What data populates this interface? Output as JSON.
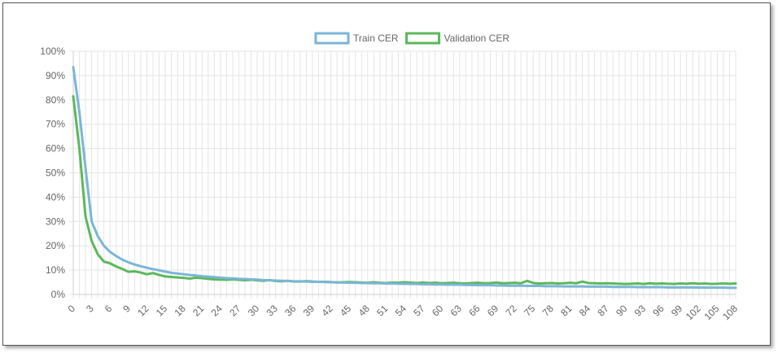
{
  "chart_data": {
    "type": "line",
    "title": "",
    "xlabel": "",
    "ylabel": "",
    "ylim": [
      0,
      100
    ],
    "y_ticks": [
      "0%",
      "10%",
      "20%",
      "30%",
      "40%",
      "50%",
      "60%",
      "70%",
      "80%",
      "90%",
      "100%"
    ],
    "x_ticks": [
      "0",
      "3",
      "6",
      "9",
      "12",
      "15",
      "18",
      "21",
      "24",
      "27",
      "30",
      "33",
      "36",
      "39",
      "42",
      "45",
      "48",
      "51",
      "54",
      "57",
      "60",
      "63",
      "66",
      "69",
      "72",
      "75",
      "78",
      "81",
      "84",
      "87",
      "90",
      "93",
      "96",
      "99",
      "102",
      "105",
      "108"
    ],
    "grid": true,
    "legend_position": "top-center",
    "x": [
      0,
      1,
      2,
      3,
      4,
      5,
      6,
      7,
      8,
      9,
      10,
      11,
      12,
      13,
      14,
      15,
      16,
      17,
      18,
      19,
      20,
      21,
      22,
      23,
      24,
      25,
      26,
      27,
      28,
      29,
      30,
      31,
      32,
      33,
      34,
      35,
      36,
      37,
      38,
      39,
      40,
      41,
      42,
      43,
      44,
      45,
      46,
      47,
      48,
      49,
      50,
      51,
      52,
      53,
      54,
      55,
      56,
      57,
      58,
      59,
      60,
      61,
      62,
      63,
      64,
      65,
      66,
      67,
      68,
      69,
      70,
      71,
      72,
      73,
      74,
      75,
      76,
      77,
      78,
      79,
      80,
      81,
      82,
      83,
      84,
      85,
      86,
      87,
      88,
      89,
      90,
      91,
      92,
      93,
      94,
      95,
      96,
      97,
      98,
      99,
      100,
      101,
      102,
      103,
      104,
      105,
      106,
      107,
      108
    ],
    "series": [
      {
        "name": "Train CER",
        "color": "#7ab6d6",
        "values": [
          93.5,
          75,
          52,
          30,
          24,
          20,
          17.5,
          15.8,
          14.3,
          13.2,
          12.3,
          11.6,
          11,
          10.4,
          9.9,
          9.4,
          8.9,
          8.6,
          8.3,
          8,
          7.8,
          7.5,
          7.3,
          7.1,
          6.9,
          6.7,
          6.6,
          6.4,
          6.3,
          6.2,
          6.1,
          5.9,
          5.8,
          5.7,
          5.6,
          5.5,
          5.4,
          5.4,
          5.3,
          5.2,
          5.2,
          5.1,
          5,
          5,
          4.9,
          4.8,
          4.8,
          4.7,
          4.7,
          4.6,
          4.6,
          4.5,
          4.5,
          4.4,
          4.4,
          4.3,
          4.3,
          4.2,
          4.2,
          4.1,
          4.1,
          4,
          4,
          4,
          3.9,
          3.9,
          3.8,
          3.8,
          3.8,
          3.7,
          3.7,
          3.6,
          3.6,
          3.6,
          3.5,
          3.5,
          3.5,
          3.4,
          3.4,
          3.4,
          3.3,
          3.3,
          3.3,
          3.3,
          3.2,
          3.2,
          3.2,
          3.2,
          3.1,
          3.1,
          3.1,
          3.1,
          3,
          3,
          3,
          3,
          3,
          2.9,
          2.9,
          2.9,
          2.9,
          2.9,
          2.8,
          2.8,
          2.8,
          2.8,
          2.8,
          2.7,
          2.7
        ]
      },
      {
        "name": "Validation CER",
        "color": "#5cb85c",
        "values": [
          81.5,
          60,
          32,
          22,
          16.5,
          13.5,
          12.8,
          11.5,
          10.5,
          9.3,
          9.5,
          9,
          8.3,
          8.8,
          8,
          7.4,
          7.2,
          7,
          6.8,
          6.5,
          6.9,
          6.7,
          6.4,
          6.2,
          6.1,
          6,
          6.2,
          6,
          5.8,
          6,
          5.8,
          5.6,
          5.9,
          5.5,
          5.4,
          5.6,
          5.3,
          5.3,
          5.5,
          5.3,
          5.2,
          5.2,
          5.1,
          4.9,
          5,
          5.1,
          5,
          4.9,
          4.8,
          5,
          4.8,
          4.7,
          4.9,
          4.8,
          5,
          4.9,
          4.7,
          4.9,
          4.7,
          4.8,
          4.6,
          4.7,
          4.8,
          4.6,
          4.5,
          4.7,
          4.8,
          4.6,
          4.7,
          4.9,
          4.6,
          4.7,
          4.8,
          4.6,
          5.6,
          4.7,
          4.5,
          4.6,
          4.7,
          4.5,
          4.6,
          4.8,
          4.6,
          5.3,
          4.7,
          4.6,
          4.5,
          4.6,
          4.5,
          4.4,
          4.3,
          4.4,
          4.5,
          4.3,
          4.6,
          4.4,
          4.5,
          4.4,
          4.3,
          4.5,
          4.4,
          4.6,
          4.4,
          4.5,
          4.3,
          4.4,
          4.5,
          4.4,
          4.5
        ]
      }
    ]
  }
}
